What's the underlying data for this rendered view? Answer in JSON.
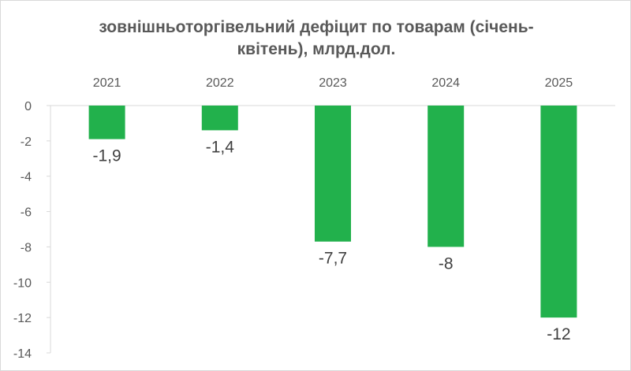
{
  "chart_data": {
    "type": "bar",
    "title_lines": [
      "зовнішньоторгівельний дефіцит по товарам (січень-",
      "квітень), млрд.дол."
    ],
    "categories": [
      "2021",
      "2022",
      "2023",
      "2024",
      "2025"
    ],
    "values": [
      -1.9,
      -1.4,
      -7.7,
      -8,
      -12
    ],
    "data_labels": [
      "-1,9",
      "-1,4",
      "-7,7",
      "-8",
      "-12"
    ],
    "yticks": [
      0,
      -2,
      -4,
      -6,
      -8,
      -10,
      -12,
      -14
    ],
    "ylim": [
      -14,
      0
    ],
    "xaxis_position": "top",
    "grid": false,
    "legend": "none",
    "bar_color": "#22b14c",
    "axis_color": "#d9d9d9"
  }
}
